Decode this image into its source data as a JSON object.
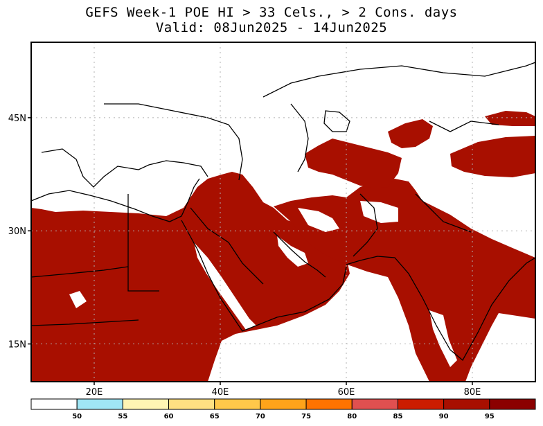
{
  "header": {
    "title": "GEFS Week-1 POE HI > 33 Cels., > 2 Cons. days",
    "valid": "Valid: 08Jun2025 - 14Jun2025"
  },
  "map": {
    "lat_ticks": [
      {
        "value": 45,
        "label": "45N"
      },
      {
        "value": 30,
        "label": "30N"
      },
      {
        "value": 15,
        "label": "15N"
      }
    ],
    "lon_ticks": [
      {
        "value": 20,
        "label": "20E"
      },
      {
        "value": 40,
        "label": "40E"
      },
      {
        "value": 60,
        "label": "60E"
      },
      {
        "value": 80,
        "label": "80E"
      }
    ],
    "lon_range": [
      10,
      90
    ],
    "lat_range": [
      10,
      55
    ],
    "gridlines": "dotted"
  },
  "colorbar": {
    "labels": [
      "50",
      "55",
      "60",
      "65",
      "70",
      "75",
      "80",
      "85",
      "90",
      "95"
    ],
    "colors": [
      "#ffffff",
      "#a0e6f5",
      "#fff5b4",
      "#ffe082",
      "#ffc84a",
      "#ffa31a",
      "#ff7300",
      "#e05050",
      "#cc1c00",
      "#a80f00",
      "#8b0000"
    ]
  },
  "colors": {
    "dark_red": "#a80f00",
    "water": "#ffffff"
  }
}
